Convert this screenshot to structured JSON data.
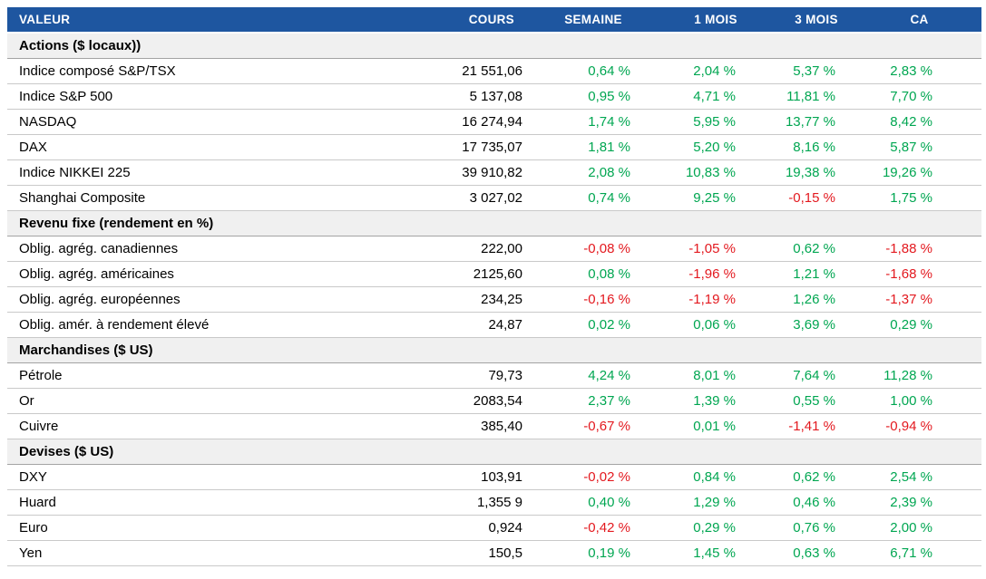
{
  "colors": {
    "header_bg": "#1e56a0",
    "positive": "#00a651",
    "negative": "#e3191f",
    "section_bg": "#f0f0f0"
  },
  "chart_data": {
    "type": "table",
    "columns": [
      "VALEUR",
      "COURS",
      "SEMAINE",
      "1 MOIS",
      "3 MOIS",
      "CA"
    ],
    "sections": [
      {
        "title": "Actions ($ locaux))",
        "rows": [
          [
            "Indice composé S&P/TSX",
            "21 551,06",
            "0,64 %",
            "2,04 %",
            "5,37 %",
            "2,83 %"
          ],
          [
            "Indice S&P 500",
            "5 137,08",
            "0,95 %",
            "4,71 %",
            "11,81 %",
            "7,70 %"
          ],
          [
            "NASDAQ",
            "16 274,94",
            "1,74 %",
            "5,95 %",
            "13,77 %",
            "8,42 %"
          ],
          [
            "DAX",
            "17 735,07",
            "1,81 %",
            "5,20 %",
            "8,16 %",
            "5,87 %"
          ],
          [
            "Indice NIKKEI 225",
            "39 910,82",
            "2,08 %",
            "10,83 %",
            "19,38 %",
            "19,26 %"
          ],
          [
            "Shanghai Composite",
            "3 027,02",
            "0,74 %",
            "9,25 %",
            "-0,15 %",
            "1,75 %"
          ]
        ]
      },
      {
        "title": "Revenu fixe (rendement en %)",
        "rows": [
          [
            "Oblig. agrég. canadiennes",
            "222,00",
            "-0,08 %",
            "-1,05 %",
            "0,62 %",
            "-1,88 %"
          ],
          [
            "Oblig. agrég. américaines",
            "2125,60",
            "0,08 %",
            "-1,96 %",
            "1,21 %",
            "-1,68 %"
          ],
          [
            "Oblig. agrég. européennes",
            "234,25",
            "-0,16 %",
            "-1,19 %",
            "1,26 %",
            "-1,37 %"
          ],
          [
            "Oblig. amér. à rendement élevé",
            "24,87",
            "0,02 %",
            "0,06 %",
            "3,69 %",
            "0,29 %"
          ]
        ]
      },
      {
        "title": "Marchandises ($ US)",
        "rows": [
          [
            "Pétrole",
            "79,73",
            "4,24 %",
            "8,01 %",
            "7,64 %",
            "11,28 %"
          ],
          [
            "Or",
            "2083,54",
            "2,37 %",
            "1,39 %",
            "0,55 %",
            "1,00 %"
          ],
          [
            "Cuivre",
            "385,40",
            "-0,67 %",
            "0,01 %",
            "-1,41 %",
            "-0,94 %"
          ]
        ]
      },
      {
        "title": "Devises ($ US)",
        "rows": [
          [
            "DXY",
            "103,91",
            "-0,02 %",
            "0,84 %",
            "0,62 %",
            "2,54 %"
          ],
          [
            "Huard",
            "1,355 9",
            "0,40 %",
            "1,29 %",
            "0,46 %",
            "2,39 %"
          ],
          [
            "Euro",
            "0,924",
            "-0,42 %",
            "0,29 %",
            "0,76 %",
            "2,00 %"
          ],
          [
            "Yen",
            "150,5",
            "0,19 %",
            "1,45 %",
            "0,63 %",
            "6,71 %"
          ]
        ]
      }
    ]
  }
}
